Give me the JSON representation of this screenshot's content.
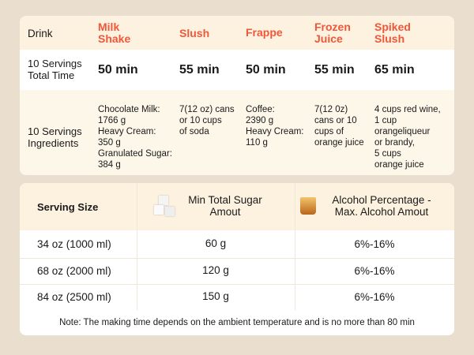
{
  "table1": {
    "header": {
      "label": "Drink",
      "drinks": [
        "Milk\nShake",
        "Slush",
        "Frappe",
        "Frozen\nJuice",
        "Spiked\nSlush"
      ]
    },
    "time": {
      "label": "10 Servings\nTotal Time",
      "values": [
        "50 min",
        "55 min",
        "50 min",
        "55 min",
        "65 min"
      ]
    },
    "ingredients": {
      "label": "10 Servings\nIngredients",
      "values": [
        "Chocolate Milk:\n1766 g\nHeavy Cream:\n350 g\nGranulated Sugar:\n384 g",
        "7(12 oz) cans\nor 10 cups\nof soda",
        "Coffee:\n2390 g\nHeavy Cream:\n110 g",
        "7(12 0z)\ncans or 10\ncups of\norange juice",
        "4 cups red wine,\n1 cup\norangeliqueur\nor brandy,\n5 cups\norange juice"
      ]
    },
    "colors": {
      "accent": "#f0573a",
      "header_bg": "#fdf2df",
      "page_bg": "#eadfcf"
    }
  },
  "table2": {
    "headers": [
      "Serving Size",
      "Min Total Sugar\nAmout",
      "Alcohol Percentage -\nMax. Alcohol Amout"
    ],
    "icons": [
      "sugar-cubes-icon",
      "whiskey-glass-icon"
    ],
    "rows": [
      [
        "34 oz (1000 ml)",
        "60 g",
        "6%-16%"
      ],
      [
        "68 oz (2000 ml)",
        "120 g",
        "6%-16%"
      ],
      [
        "84 oz (2500 ml)",
        "150 g",
        "6%-16%"
      ]
    ],
    "note": "Note: The making time depends on the ambient temperature and is no more than 80 min"
  }
}
